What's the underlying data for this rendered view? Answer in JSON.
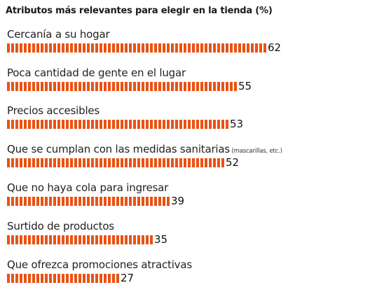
{
  "chart_data": {
    "type": "bar",
    "orientation": "horizontal",
    "title": "Atributos más relevantes para elegir en la tienda (%)",
    "bar_color": "#ea5213",
    "categories": [
      "Cercanía a su hogar",
      "Poca cantidad de gente en el lugar",
      "Precios accesibles",
      "Que se cumplan con las medidas sanitarias",
      "Que no haya cola para ingresar",
      "Surtido de productos",
      "Que ofrezca promociones atractivas"
    ],
    "notes": [
      "",
      "",
      "",
      "(mascarillas, etc.)",
      "",
      "",
      ""
    ],
    "values": [
      62,
      55,
      53,
      52,
      39,
      35,
      27
    ],
    "value_labels": [
      "62",
      "55",
      "53",
      "52",
      "39",
      "35",
      "27"
    ]
  }
}
